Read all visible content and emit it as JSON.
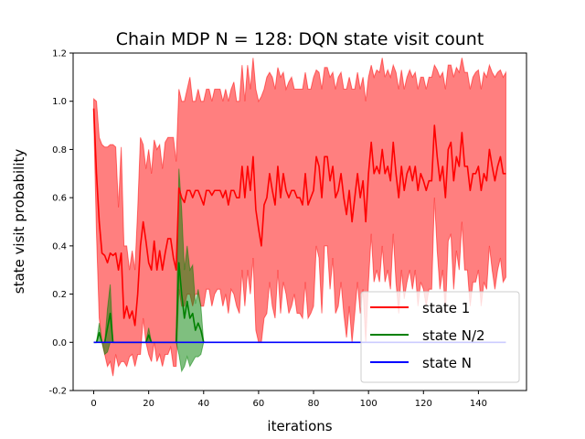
{
  "chart_data": {
    "type": "line",
    "title": "Chain MDP N = 128: DQN state visit count",
    "xlabel": "iterations",
    "ylabel": "state visit probability",
    "xlim": [
      -7.5,
      157.5
    ],
    "ylim": [
      -0.2,
      1.2
    ],
    "xticks": [
      0,
      20,
      40,
      60,
      80,
      100,
      120,
      140
    ],
    "yticks": [
      -0.2,
      0.0,
      0.2,
      0.4,
      0.6,
      0.8,
      1.0,
      1.2
    ],
    "grid": false,
    "legend_position": "bottom-right",
    "series": [
      {
        "name": "state 1",
        "color": "#ff0000",
        "fill_color": "#ff0000",
        "fill_opacity": 0.5,
        "x_start": 0,
        "x_end": 150,
        "mean": [
          0.97,
          0.7,
          0.5,
          0.37,
          0.36,
          0.33,
          0.37,
          0.36,
          0.37,
          0.3,
          0.37,
          0.1,
          0.15,
          0.1,
          0.13,
          0.07,
          0.2,
          0.4,
          0.5,
          0.42,
          0.33,
          0.3,
          0.42,
          0.3,
          0.38,
          0.3,
          0.37,
          0.43,
          0.43,
          0.35,
          0.3,
          0.64,
          0.6,
          0.58,
          0.63,
          0.63,
          0.6,
          0.63,
          0.63,
          0.6,
          0.57,
          0.63,
          0.63,
          0.61,
          0.63,
          0.63,
          0.63,
          0.6,
          0.63,
          0.57,
          0.63,
          0.63,
          0.6,
          0.6,
          0.73,
          0.6,
          0.73,
          0.63,
          0.77,
          0.55,
          0.47,
          0.4,
          0.57,
          0.6,
          0.7,
          0.63,
          0.57,
          0.73,
          0.6,
          0.7,
          0.63,
          0.6,
          0.63,
          0.63,
          0.6,
          0.6,
          0.57,
          0.7,
          0.57,
          0.6,
          0.63,
          0.77,
          0.73,
          0.6,
          0.77,
          0.77,
          0.67,
          0.73,
          0.6,
          0.63,
          0.7,
          0.6,
          0.53,
          0.63,
          0.5,
          0.6,
          0.7,
          0.6,
          0.67,
          0.5,
          0.7,
          0.83,
          0.7,
          0.73,
          0.7,
          0.8,
          0.7,
          0.73,
          0.67,
          0.83,
          0.7,
          0.6,
          0.73,
          0.63,
          0.7,
          0.73,
          0.67,
          0.73,
          0.63,
          0.7,
          0.67,
          0.63,
          0.67,
          0.67,
          0.9,
          0.77,
          0.67,
          0.73,
          0.6,
          0.8,
          0.83,
          0.67,
          0.77,
          0.73,
          0.87,
          0.73,
          0.73,
          0.63,
          0.7,
          0.7,
          0.73,
          0.63,
          0.7,
          0.67,
          0.8,
          0.73,
          0.67,
          0.73,
          0.77,
          0.7,
          0.7
        ],
        "upper": [
          1.01,
          1.0,
          0.85,
          0.82,
          0.81,
          0.81,
          0.82,
          0.82,
          0.81,
          0.56,
          0.81,
          0.4,
          0.4,
          0.3,
          0.38,
          0.3,
          0.55,
          0.85,
          0.82,
          0.72,
          0.8,
          0.7,
          0.84,
          0.8,
          0.82,
          0.72,
          0.83,
          0.85,
          0.85,
          0.85,
          0.75,
          1.05,
          1.0,
          1.0,
          1.05,
          1.1,
          1.0,
          1.0,
          1.05,
          1.0,
          1.0,
          1.05,
          1.05,
          1.0,
          1.05,
          1.05,
          1.05,
          1.0,
          1.05,
          1.0,
          1.05,
          1.08,
          1.0,
          1.0,
          1.15,
          1.0,
          1.15,
          1.05,
          1.18,
          1.05,
          1.0,
          1.02,
          1.05,
          1.1,
          1.12,
          1.1,
          1.05,
          1.14,
          1.1,
          1.12,
          1.05,
          1.08,
          1.1,
          1.05,
          1.05,
          1.05,
          1.05,
          1.12,
          1.05,
          1.05,
          1.1,
          1.13,
          1.12,
          1.05,
          1.14,
          1.14,
          1.1,
          1.12,
          1.05,
          1.1,
          1.12,
          1.05,
          1.05,
          1.1,
          1.05,
          1.05,
          1.12,
          1.05,
          1.1,
          1.0,
          1.1,
          1.15,
          1.1,
          1.13,
          1.12,
          1.18,
          1.1,
          1.13,
          1.1,
          1.15,
          1.12,
          1.05,
          1.13,
          1.05,
          1.1,
          1.13,
          1.1,
          1.12,
          1.05,
          1.1,
          1.1,
          1.05,
          1.1,
          1.1,
          1.15,
          1.13,
          1.1,
          1.12,
          1.05,
          1.15,
          1.15,
          1.1,
          1.14,
          1.12,
          1.18,
          1.12,
          1.12,
          1.05,
          1.1,
          1.12,
          1.13,
          1.05,
          1.12,
          1.1,
          1.15,
          1.12,
          1.1,
          1.12,
          1.13,
          1.1,
          1.12
        ],
        "lower": [
          0.93,
          0.45,
          0.1,
          0.0,
          -0.05,
          -0.1,
          -0.08,
          -0.14,
          -0.05,
          -0.1,
          -0.08,
          -0.08,
          -0.1,
          -0.06,
          -0.05,
          -0.1,
          -0.05,
          -0.05,
          0.1,
          0.0,
          -0.05,
          -0.08,
          0.0,
          -0.08,
          -0.05,
          -0.1,
          -0.05,
          -0.05,
          -0.02,
          -0.1,
          -0.1,
          0.22,
          0.15,
          0.15,
          0.2,
          0.2,
          0.15,
          0.2,
          0.2,
          0.15,
          0.15,
          0.22,
          0.22,
          0.15,
          0.2,
          0.22,
          0.22,
          0.15,
          0.2,
          0.12,
          0.22,
          0.2,
          0.15,
          0.12,
          0.3,
          0.15,
          0.3,
          0.2,
          0.35,
          0.05,
          0.0,
          0.0,
          0.1,
          0.12,
          0.25,
          0.15,
          0.1,
          0.3,
          0.12,
          0.25,
          0.2,
          0.12,
          0.15,
          0.2,
          0.12,
          0.12,
          0.1,
          0.25,
          0.1,
          0.12,
          0.15,
          0.4,
          0.35,
          0.12,
          0.4,
          0.4,
          0.22,
          0.35,
          0.12,
          0.15,
          0.25,
          0.12,
          0.02,
          0.15,
          0.0,
          0.12,
          0.25,
          0.12,
          0.22,
          0.0,
          0.25,
          0.45,
          0.25,
          0.3,
          0.25,
          0.4,
          0.25,
          0.3,
          0.22,
          0.45,
          0.25,
          0.12,
          0.3,
          0.18,
          0.25,
          0.3,
          0.22,
          0.3,
          0.15,
          0.25,
          0.22,
          0.15,
          0.22,
          0.22,
          0.6,
          0.38,
          0.22,
          0.3,
          0.12,
          0.42,
          0.45,
          0.22,
          0.38,
          0.3,
          0.5,
          0.3,
          0.3,
          0.15,
          0.25,
          0.25,
          0.3,
          0.15,
          0.25,
          0.22,
          0.4,
          0.3,
          0.22,
          0.3,
          0.35,
          0.25,
          0.27
        ]
      },
      {
        "name": "state N/2",
        "color": "#008000",
        "fill_color": "#008000",
        "fill_opacity": 0.5,
        "x_start": 0,
        "x_end": 40,
        "mean": [
          0.0,
          0.0,
          0.04,
          0.0,
          0.0,
          0.06,
          0.12,
          0.0,
          0.0,
          0.0,
          0.0,
          0.0,
          0.0,
          0.0,
          0.0,
          0.0,
          0.0,
          0.0,
          0.0,
          0.0,
          0.03,
          0.0,
          0.0,
          0.0,
          0.0,
          0.0,
          0.0,
          0.0,
          0.0,
          0.0,
          0.0,
          0.33,
          0.2,
          0.1,
          0.17,
          0.1,
          0.12,
          0.05,
          0.08,
          0.05,
          0.0
        ],
        "upper": [
          0.0,
          0.0,
          0.08,
          0.0,
          0.0,
          0.14,
          0.24,
          0.0,
          0.0,
          0.0,
          0.0,
          0.0,
          0.0,
          0.0,
          0.0,
          0.0,
          0.0,
          0.0,
          0.0,
          0.0,
          0.06,
          0.0,
          0.0,
          0.0,
          0.0,
          0.0,
          0.0,
          0.0,
          0.0,
          0.0,
          0.0,
          0.72,
          0.55,
          0.3,
          0.4,
          0.3,
          0.32,
          0.16,
          0.22,
          0.15,
          0.0
        ],
        "lower": [
          0.0,
          0.0,
          0.0,
          0.0,
          -0.05,
          -0.04,
          0.0,
          0.0,
          0.0,
          0.0,
          0.0,
          0.0,
          0.0,
          0.0,
          0.0,
          0.0,
          0.0,
          0.0,
          0.0,
          0.0,
          0.0,
          0.0,
          0.0,
          0.0,
          0.0,
          0.0,
          0.0,
          0.0,
          0.0,
          0.0,
          0.0,
          -0.05,
          -0.12,
          -0.1,
          -0.06,
          -0.1,
          -0.08,
          -0.06,
          -0.06,
          -0.05,
          0.0
        ]
      },
      {
        "name": "state N",
        "color": "#0000ff",
        "x_start": 0,
        "x_end": 150,
        "constant": 0.0
      }
    ]
  }
}
